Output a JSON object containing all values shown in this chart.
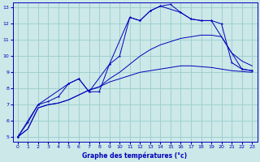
{
  "xlabel": "Graphe des températures (°c)",
  "bg_color": "#cce8e8",
  "grid_color": "#99cccc",
  "line_color": "#0000bb",
  "xlim_min": -0.5,
  "xlim_max": 23.5,
  "ylim_min": 4.7,
  "ylim_max": 13.3,
  "xticks": [
    0,
    1,
    2,
    3,
    4,
    5,
    6,
    7,
    8,
    9,
    10,
    11,
    12,
    13,
    14,
    15,
    16,
    17,
    18,
    19,
    20,
    21,
    22,
    23
  ],
  "yticks": [
    5,
    6,
    7,
    8,
    9,
    10,
    11,
    12,
    13
  ],
  "line1_x": [
    0,
    1,
    2,
    3,
    4,
    5,
    6,
    7,
    8,
    9,
    10,
    11,
    12,
    13,
    14,
    15,
    16,
    17,
    18,
    19,
    20,
    21,
    22,
    23
  ],
  "line1_y": [
    5.0,
    5.9,
    7.0,
    7.2,
    7.5,
    8.3,
    8.6,
    7.8,
    7.8,
    9.5,
    10.0,
    12.4,
    12.2,
    12.8,
    13.1,
    13.2,
    12.7,
    12.3,
    12.2,
    12.2,
    12.0,
    9.6,
    9.2,
    9.1
  ],
  "line2_x": [
    0,
    2,
    5,
    6,
    7,
    9,
    11,
    12,
    13,
    14,
    16,
    17,
    18,
    19,
    22,
    23
  ],
  "line2_y": [
    5.0,
    7.0,
    8.3,
    8.6,
    7.8,
    9.5,
    12.4,
    12.2,
    12.8,
    13.1,
    12.7,
    12.3,
    12.2,
    12.2,
    9.2,
    9.1
  ],
  "line3_x": [
    0,
    1,
    2,
    3,
    4,
    5,
    6,
    7,
    8,
    9,
    10,
    11,
    12,
    13,
    14,
    15,
    16,
    17,
    18,
    19,
    20,
    21,
    22,
    23
  ],
  "line3_y": [
    5.0,
    5.5,
    6.8,
    7.0,
    7.1,
    7.3,
    7.6,
    7.9,
    8.1,
    8.4,
    8.6,
    8.8,
    9.0,
    9.1,
    9.2,
    9.3,
    9.4,
    9.4,
    9.35,
    9.3,
    9.2,
    9.1,
    9.05,
    9.0
  ],
  "line4_x": [
    0,
    1,
    2,
    3,
    4,
    5,
    6,
    7,
    8,
    9,
    10,
    11,
    12,
    13,
    14,
    15,
    16,
    17,
    18,
    19,
    20,
    21,
    22,
    23
  ],
  "line4_y": [
    5.0,
    5.5,
    6.8,
    7.0,
    7.1,
    7.3,
    7.6,
    7.9,
    8.1,
    8.6,
    9.0,
    9.5,
    10.0,
    10.4,
    10.7,
    10.9,
    11.1,
    11.2,
    11.3,
    11.3,
    11.2,
    10.2,
    9.7,
    9.4
  ]
}
